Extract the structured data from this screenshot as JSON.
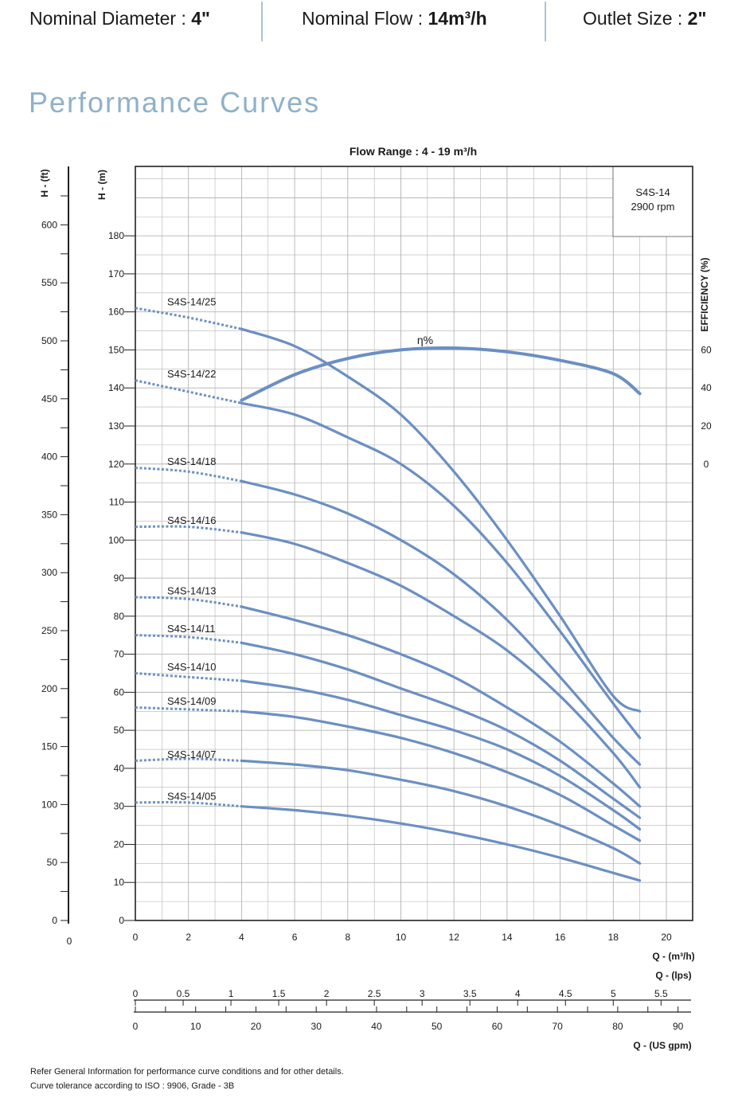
{
  "header": {
    "diameter_label": "Nominal Diameter : ",
    "diameter_value": "4\"",
    "flow_label": "Nominal Flow : ",
    "flow_value": "14m³/h",
    "outlet_label": "Outlet Size : ",
    "outlet_value": "2\""
  },
  "section_title": "Performance Curves",
  "footnotes": [
    "Refer General Information for performance curve conditions and for other details.",
    "Curve tolerance according to ISO : 9906, Grade - 3B"
  ],
  "colors": {
    "curve": "#6b8fc2",
    "grid": "#b3b3b3",
    "title": "#8fb1c9",
    "separator": "#a9c3d6"
  },
  "chart_data": {
    "type": "line",
    "title": "Flow Range : 4 - 19 m³/h",
    "model_box": [
      "S4S-14",
      "2900 rpm"
    ],
    "xlabel": "Q - (m³/h)",
    "xlim": [
      0,
      21
    ],
    "x_ticks": [
      0,
      2,
      4,
      6,
      8,
      10,
      12,
      14,
      16,
      18,
      20
    ],
    "ylabel_left_m": "H - (m)",
    "ylim_m": [
      0,
      190
    ],
    "y_ticks_m": [
      0,
      10,
      20,
      30,
      40,
      50,
      60,
      70,
      80,
      90,
      100,
      110,
      120,
      130,
      140,
      150,
      160,
      170,
      180
    ],
    "ylabel_left_ft": "H - (ft)",
    "y_ticks_ft": [
      0,
      50,
      100,
      150,
      200,
      250,
      300,
      350,
      400,
      450,
      500,
      550,
      600
    ],
    "ylabel_right": "EFFICIENCY (%)",
    "efficiency_ticks": [
      0,
      20,
      40,
      60
    ],
    "efficiency_curve_label": "η%",
    "secondary_x_axes": [
      {
        "label": "Q - (lps)",
        "ticks": [
          0,
          0.5,
          1,
          1.5,
          2,
          2.5,
          3,
          3.5,
          4,
          4.5,
          5,
          5.5
        ]
      },
      {
        "label": "Q - (US gpm)",
        "ticks": [
          0,
          10,
          20,
          30,
          40,
          50,
          60,
          70,
          80,
          90
        ]
      }
    ],
    "dashed_range": [
      0,
      4
    ],
    "series": [
      {
        "name": "S4S-14/25",
        "x": [
          0,
          2,
          4,
          6,
          8,
          10,
          12,
          14,
          16,
          18,
          19
        ],
        "y": [
          161,
          158.5,
          155.5,
          151,
          143,
          133,
          118,
          100,
          80,
          59,
          55
        ]
      },
      {
        "name": "S4S-14/22",
        "x": [
          0,
          2,
          4,
          6,
          8,
          10,
          12,
          14,
          16,
          18,
          19
        ],
        "y": [
          142,
          139,
          136,
          133,
          127,
          120,
          109,
          94,
          76,
          57,
          48
        ]
      },
      {
        "name": "S4S-14/18",
        "x": [
          0,
          2,
          4,
          6,
          8,
          10,
          12,
          14,
          16,
          18,
          19
        ],
        "y": [
          119,
          118,
          115.5,
          112,
          107,
          100,
          91,
          79,
          64,
          48,
          41
        ]
      },
      {
        "name": "S4S-14/16",
        "x": [
          0,
          2,
          4,
          6,
          8,
          10,
          12,
          14,
          16,
          18,
          19
        ],
        "y": [
          103.5,
          103.5,
          102,
          99,
          94,
          88,
          80,
          71,
          59,
          44,
          35
        ]
      },
      {
        "name": "S4S-14/13",
        "x": [
          0,
          2,
          4,
          6,
          8,
          10,
          12,
          14,
          16,
          18,
          19
        ],
        "y": [
          85,
          84.5,
          82.5,
          79,
          75,
          70,
          64,
          56,
          47,
          36,
          30
        ]
      },
      {
        "name": "S4S-14/11",
        "x": [
          0,
          2,
          4,
          6,
          8,
          10,
          12,
          14,
          16,
          18,
          19
        ],
        "y": [
          75,
          74.5,
          73,
          70,
          66,
          61,
          56,
          50,
          42,
          32,
          27
        ]
      },
      {
        "name": "S4S-14/10",
        "x": [
          0,
          2,
          4,
          6,
          8,
          10,
          12,
          14,
          16,
          18,
          19
        ],
        "y": [
          65,
          64,
          63,
          61,
          58,
          54,
          50,
          45,
          38,
          29,
          24
        ]
      },
      {
        "name": "S4S-14/09",
        "x": [
          0,
          2,
          4,
          6,
          8,
          10,
          12,
          14,
          16,
          18,
          19
        ],
        "y": [
          56,
          55.5,
          55,
          53.5,
          51,
          48,
          44,
          39,
          33,
          25,
          21
        ]
      },
      {
        "name": "S4S-14/07",
        "x": [
          0,
          2,
          4,
          6,
          8,
          10,
          12,
          14,
          16,
          18,
          19
        ],
        "y": [
          42,
          42.5,
          42,
          41,
          39.5,
          37,
          34,
          30,
          25,
          19,
          15
        ]
      },
      {
        "name": "S4S-14/05",
        "x": [
          0,
          2,
          4,
          6,
          8,
          10,
          12,
          14,
          16,
          18,
          19
        ],
        "y": [
          31,
          31,
          30,
          29,
          27.5,
          25.5,
          23,
          20,
          16.5,
          12.5,
          10.5
        ]
      }
    ],
    "efficiency": {
      "x": [
        4,
        6,
        8,
        10,
        12,
        14,
        16,
        18,
        19
      ],
      "y": [
        33.5,
        47,
        55.5,
        60,
        61,
        59,
        54.5,
        47.5,
        37
      ]
    }
  }
}
